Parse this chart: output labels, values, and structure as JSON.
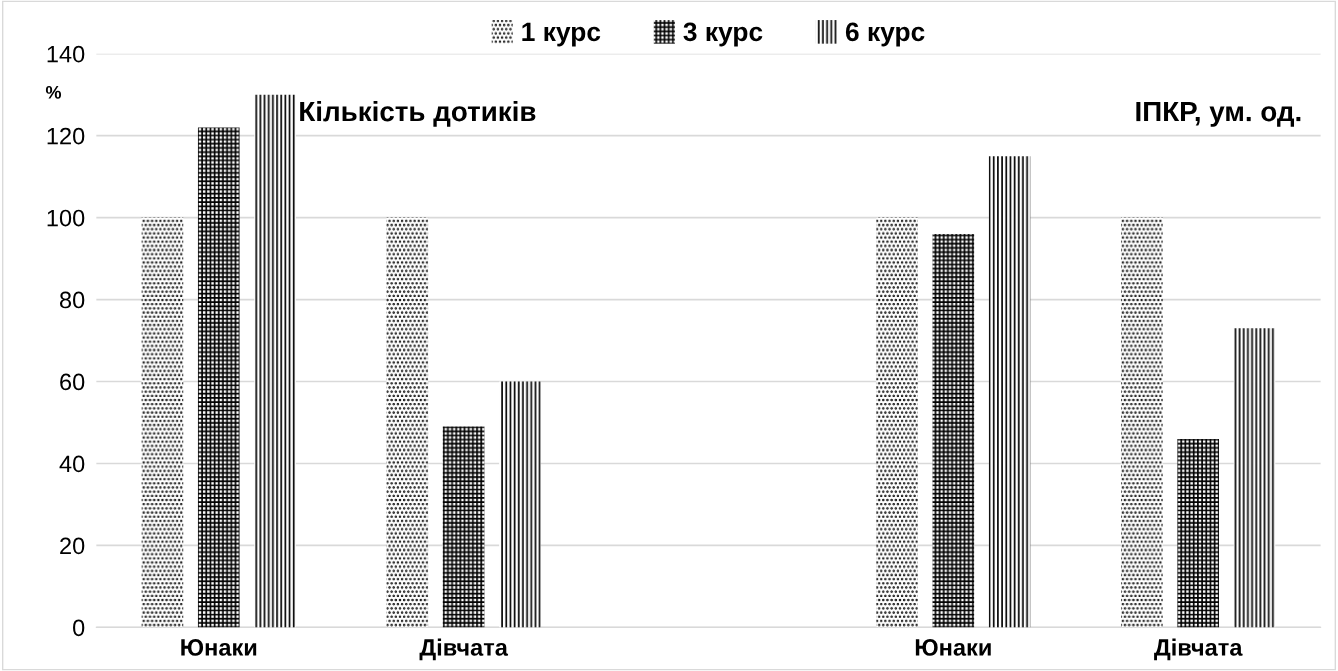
{
  "chart_data": {
    "type": "bar",
    "categories": [
      "Юнаки",
      "Дівчата",
      null,
      "Юнаки",
      "Дівчата"
    ],
    "series": [
      {
        "name": "1 курс",
        "color": "#000000",
        "values": [
          100,
          100,
          null,
          100,
          100
        ]
      },
      {
        "name": "3 курс",
        "color": "#000000",
        "values": [
          122,
          49,
          null,
          96,
          46
        ]
      },
      {
        "name": "6 курс",
        "color": "#000000",
        "values": [
          130,
          60,
          null,
          115,
          73
        ]
      }
    ],
    "ylabel": "%",
    "annotations": [
      "Кількість дотиків",
      "ІПКР, ум. од."
    ],
    "ylim": [
      0,
      140
    ],
    "yticks": [
      0,
      20,
      40,
      60,
      80,
      100,
      120,
      140
    ],
    "grid": "y",
    "legend": "top"
  }
}
